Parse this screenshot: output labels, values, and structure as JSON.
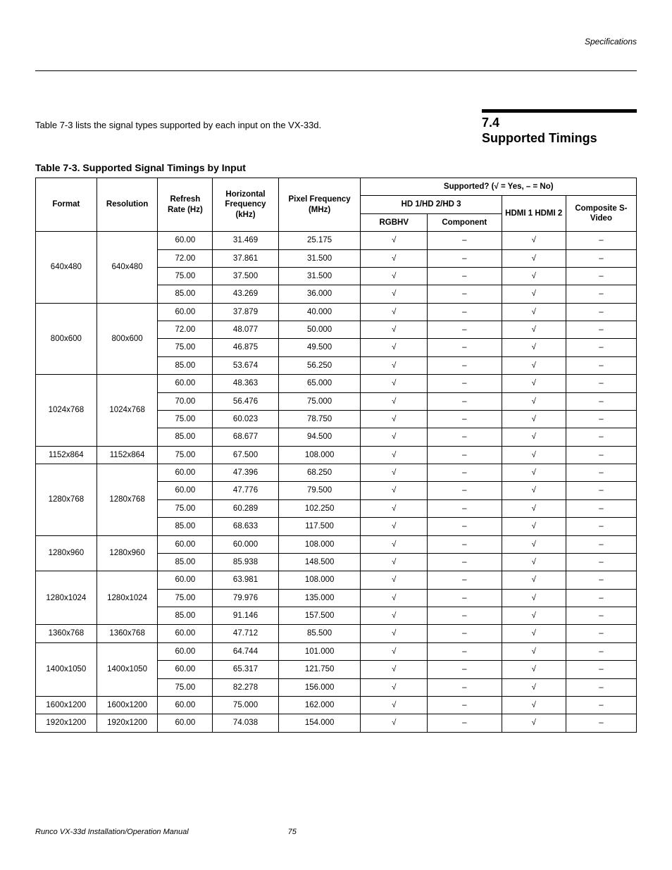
{
  "symbols": {
    "yes": "√",
    "no": "–"
  },
  "page": {
    "topRightLabel": "Specifications",
    "introText": "Table 7-3 lists the signal types supported by each input on the VX-33d.",
    "sectionNumber": "7.4",
    "sectionTitle": "Supported Timings",
    "footerText": "Runco VX-33d Installation/Operation Manual",
    "pageNumber": "75"
  },
  "table": {
    "caption": "Table 7-3. Supported Signal Timings by Input",
    "headers": {
      "format": "Format",
      "resolution": "Resolution",
      "refresh": "Refresh Rate (Hz)",
      "hfreq": "Horizontal Frequency (kHz)",
      "pfreq": "Pixel Frequency (MHz)",
      "supportedGroup": "Supported? (√ = Yes, – = No)",
      "hdGroup": "HD 1/HD 2/HD 3",
      "rgbhv": "RGBHV",
      "component": "Component",
      "hdmi": "HDMI 1 HDMI 2",
      "composite": "Composite S-Video"
    },
    "groups": [
      {
        "format": "640x480",
        "resolution": "640x480",
        "rows": [
          {
            "refresh": "60.00",
            "hfreq": "31.469",
            "pfreq": "25.175",
            "rgbhv": "√",
            "component": "–",
            "hdmi": "√",
            "composite": "–"
          },
          {
            "refresh": "72.00",
            "hfreq": "37.861",
            "pfreq": "31.500",
            "rgbhv": "√",
            "component": "–",
            "hdmi": "√",
            "composite": "–"
          },
          {
            "refresh": "75.00",
            "hfreq": "37.500",
            "pfreq": "31.500",
            "rgbhv": "√",
            "component": "–",
            "hdmi": "√",
            "composite": "–"
          },
          {
            "refresh": "85.00",
            "hfreq": "43.269",
            "pfreq": "36.000",
            "rgbhv": "√",
            "component": "–",
            "hdmi": "√",
            "composite": "–"
          }
        ]
      },
      {
        "format": "800x600",
        "resolution": "800x600",
        "rows": [
          {
            "refresh": "60.00",
            "hfreq": "37.879",
            "pfreq": "40.000",
            "rgbhv": "√",
            "component": "–",
            "hdmi": "√",
            "composite": "–"
          },
          {
            "refresh": "72.00",
            "hfreq": "48.077",
            "pfreq": "50.000",
            "rgbhv": "√",
            "component": "–",
            "hdmi": "√",
            "composite": "–"
          },
          {
            "refresh": "75.00",
            "hfreq": "46.875",
            "pfreq": "49.500",
            "rgbhv": "√",
            "component": "–",
            "hdmi": "√",
            "composite": "–"
          },
          {
            "refresh": "85.00",
            "hfreq": "53.674",
            "pfreq": "56.250",
            "rgbhv": "√",
            "component": "–",
            "hdmi": "√",
            "composite": "–"
          }
        ]
      },
      {
        "format": "1024x768",
        "resolution": "1024x768",
        "rows": [
          {
            "refresh": "60.00",
            "hfreq": "48.363",
            "pfreq": "65.000",
            "rgbhv": "√",
            "component": "–",
            "hdmi": "√",
            "composite": "–"
          },
          {
            "refresh": "70.00",
            "hfreq": "56.476",
            "pfreq": "75.000",
            "rgbhv": "√",
            "component": "–",
            "hdmi": "√",
            "composite": "–"
          },
          {
            "refresh": "75.00",
            "hfreq": "60.023",
            "pfreq": "78.750",
            "rgbhv": "√",
            "component": "–",
            "hdmi": "√",
            "composite": "–"
          },
          {
            "refresh": "85.00",
            "hfreq": "68.677",
            "pfreq": "94.500",
            "rgbhv": "√",
            "component": "–",
            "hdmi": "√",
            "composite": "–"
          }
        ]
      },
      {
        "format": "1152x864",
        "resolution": "1152x864",
        "rows": [
          {
            "refresh": "75.00",
            "hfreq": "67.500",
            "pfreq": "108.000",
            "rgbhv": "√",
            "component": "–",
            "hdmi": "√",
            "composite": "–"
          }
        ]
      },
      {
        "format": "1280x768",
        "resolution": "1280x768",
        "rows": [
          {
            "refresh": "60.00",
            "hfreq": "47.396",
            "pfreq": "68.250",
            "rgbhv": "√",
            "component": "–",
            "hdmi": "√",
            "composite": "–"
          },
          {
            "refresh": "60.00",
            "hfreq": "47.776",
            "pfreq": "79.500",
            "rgbhv": "√",
            "component": "–",
            "hdmi": "√",
            "composite": "–"
          },
          {
            "refresh": "75.00",
            "hfreq": "60.289",
            "pfreq": "102.250",
            "rgbhv": "√",
            "component": "–",
            "hdmi": "√",
            "composite": "–"
          },
          {
            "refresh": "85.00",
            "hfreq": "68.633",
            "pfreq": "117.500",
            "rgbhv": "√",
            "component": "–",
            "hdmi": "√",
            "composite": "–"
          }
        ]
      },
      {
        "format": "1280x960",
        "resolution": "1280x960",
        "rows": [
          {
            "refresh": "60.00",
            "hfreq": "60.000",
            "pfreq": "108.000",
            "rgbhv": "√",
            "component": "–",
            "hdmi": "√",
            "composite": "–"
          },
          {
            "refresh": "85.00",
            "hfreq": "85.938",
            "pfreq": "148.500",
            "rgbhv": "√",
            "component": "–",
            "hdmi": "√",
            "composite": "–"
          }
        ]
      },
      {
        "format": "1280x1024",
        "resolution": "1280x1024",
        "rows": [
          {
            "refresh": "60.00",
            "hfreq": "63.981",
            "pfreq": "108.000",
            "rgbhv": "√",
            "component": "–",
            "hdmi": "√",
            "composite": "–"
          },
          {
            "refresh": "75.00",
            "hfreq": "79.976",
            "pfreq": "135.000",
            "rgbhv": "√",
            "component": "–",
            "hdmi": "√",
            "composite": "–"
          },
          {
            "refresh": "85.00",
            "hfreq": "91.146",
            "pfreq": "157.500",
            "rgbhv": "√",
            "component": "–",
            "hdmi": "√",
            "composite": "–"
          }
        ]
      },
      {
        "format": "1360x768",
        "resolution": "1360x768",
        "rows": [
          {
            "refresh": "60.00",
            "hfreq": "47.712",
            "pfreq": "85.500",
            "rgbhv": "√",
            "component": "–",
            "hdmi": "√",
            "composite": "–"
          }
        ]
      },
      {
        "format": "1400x1050",
        "resolution": "1400x1050",
        "rows": [
          {
            "refresh": "60.00",
            "hfreq": "64.744",
            "pfreq": "101.000",
            "rgbhv": "√",
            "component": "–",
            "hdmi": "√",
            "composite": "–"
          },
          {
            "refresh": "60.00",
            "hfreq": "65.317",
            "pfreq": "121.750",
            "rgbhv": "√",
            "component": "–",
            "hdmi": "√",
            "composite": "–"
          },
          {
            "refresh": "75.00",
            "hfreq": "82.278",
            "pfreq": "156.000",
            "rgbhv": "√",
            "component": "–",
            "hdmi": "√",
            "composite": "–"
          }
        ]
      },
      {
        "format": "1600x1200",
        "resolution": "1600x1200",
        "rows": [
          {
            "refresh": "60.00",
            "hfreq": "75.000",
            "pfreq": "162.000",
            "rgbhv": "√",
            "component": "–",
            "hdmi": "√",
            "composite": "–"
          }
        ]
      },
      {
        "format": "1920x1200",
        "resolution": "1920x1200",
        "rows": [
          {
            "refresh": "60.00",
            "hfreq": "74.038",
            "pfreq": "154.000",
            "rgbhv": "√",
            "component": "–",
            "hdmi": "√",
            "composite": "–"
          }
        ]
      }
    ]
  }
}
